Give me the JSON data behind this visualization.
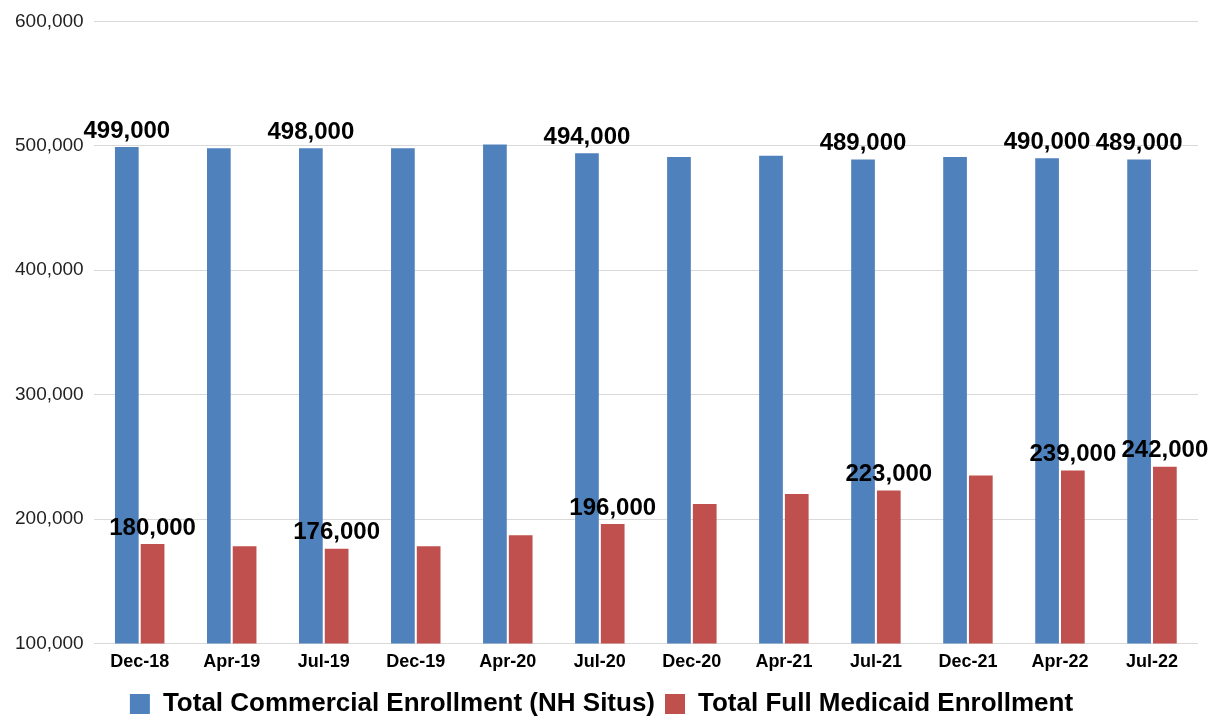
{
  "chart_data": {
    "type": "bar",
    "categories": [
      "Dec-18",
      "Apr-19",
      "Jul-19",
      "Dec-19",
      "Apr-20",
      "Jul-20",
      "Dec-20",
      "Apr-21",
      "Jul-21",
      "Dec-21",
      "Apr-22",
      "Jul-22"
    ],
    "series": [
      {
        "name": "Total Commercial Enrollment (NH Situs)",
        "color": "#4f81bd",
        "values": [
          499000,
          498000,
          498000,
          498000,
          501000,
          494000,
          491000,
          492000,
          489000,
          491000,
          490000,
          489000
        ],
        "value_labels": [
          "499,000",
          null,
          "498,000",
          null,
          null,
          "494,000",
          null,
          null,
          "489,000",
          null,
          "490,000",
          "489,000"
        ]
      },
      {
        "name": "Total Full Medicaid Enrollment",
        "color": "#c0504d",
        "values": [
          180000,
          178000,
          176000,
          178000,
          187000,
          196000,
          212000,
          220000,
          223000,
          235000,
          239000,
          242000
        ],
        "value_labels": [
          "180,000",
          null,
          "176,000",
          null,
          null,
          "196,000",
          null,
          null,
          "223,000",
          null,
          "239,000",
          "242,000"
        ]
      }
    ],
    "ylim": [
      100000,
      600000
    ],
    "yticks": [
      {
        "value": 100000,
        "label": "100,000"
      },
      {
        "value": 200000,
        "label": "200,000"
      },
      {
        "value": 300000,
        "label": "300,000"
      },
      {
        "value": 400000,
        "label": "400,000"
      },
      {
        "value": 500000,
        "label": "500,000"
      },
      {
        "value": 600000,
        "label": "600,000"
      }
    ],
    "grid": "y",
    "legend": "bottom"
  }
}
